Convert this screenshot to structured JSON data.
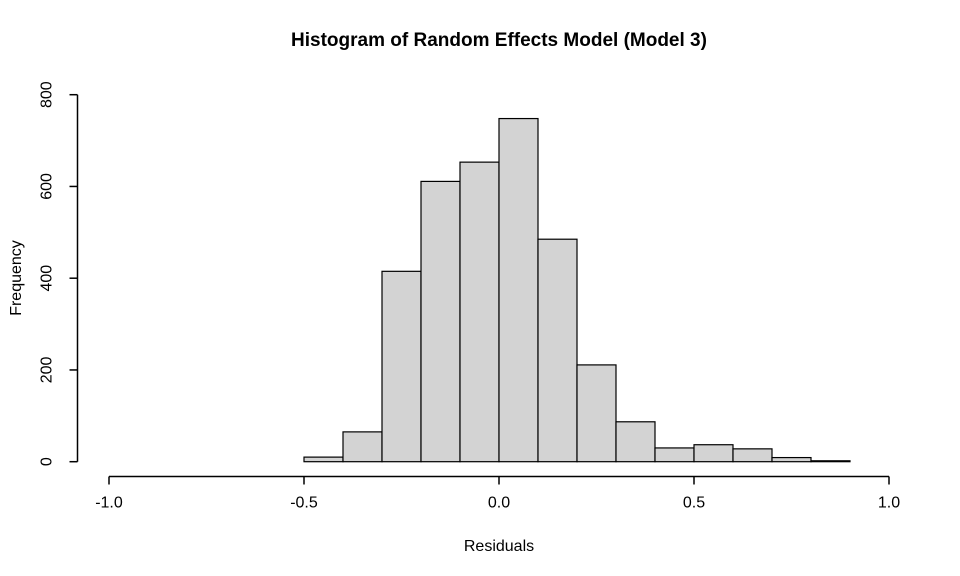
{
  "figure": {
    "background_color": "#ffffff",
    "text_color": "#000000"
  },
  "chart_data": {
    "type": "bar",
    "subtype": "histogram",
    "title": "Histogram of Random Effects Model (Model 3)",
    "xlabel": "Residuals",
    "ylabel": "Frequency",
    "bin_start": -0.5,
    "bin_width": 0.1,
    "bin_edges": [
      -0.5,
      -0.4,
      -0.3,
      -0.2,
      -0.1,
      0.0,
      0.1,
      0.2,
      0.3,
      0.4,
      0.5,
      0.6,
      0.7,
      0.8,
      0.9
    ],
    "counts": [
      10,
      65,
      415,
      611,
      653,
      748,
      485,
      211,
      87,
      30,
      37,
      28,
      9,
      2
    ],
    "xlim": [
      -1.0,
      1.0
    ],
    "ylim": [
      0,
      800
    ],
    "x_ticks": [
      -1.0,
      -0.5,
      0.0,
      0.5,
      1.0
    ],
    "x_tick_labels": [
      "-1.0",
      "-0.5",
      "0.0",
      "0.5",
      "1.0"
    ],
    "y_ticks": [
      0,
      200,
      400,
      600,
      800
    ],
    "y_tick_labels": [
      "0",
      "200",
      "400",
      "600",
      "800"
    ],
    "grid": false,
    "legend": null,
    "bar_fill": "#d3d3d3",
    "bar_border": "#000000",
    "axis_color": "#000000"
  }
}
